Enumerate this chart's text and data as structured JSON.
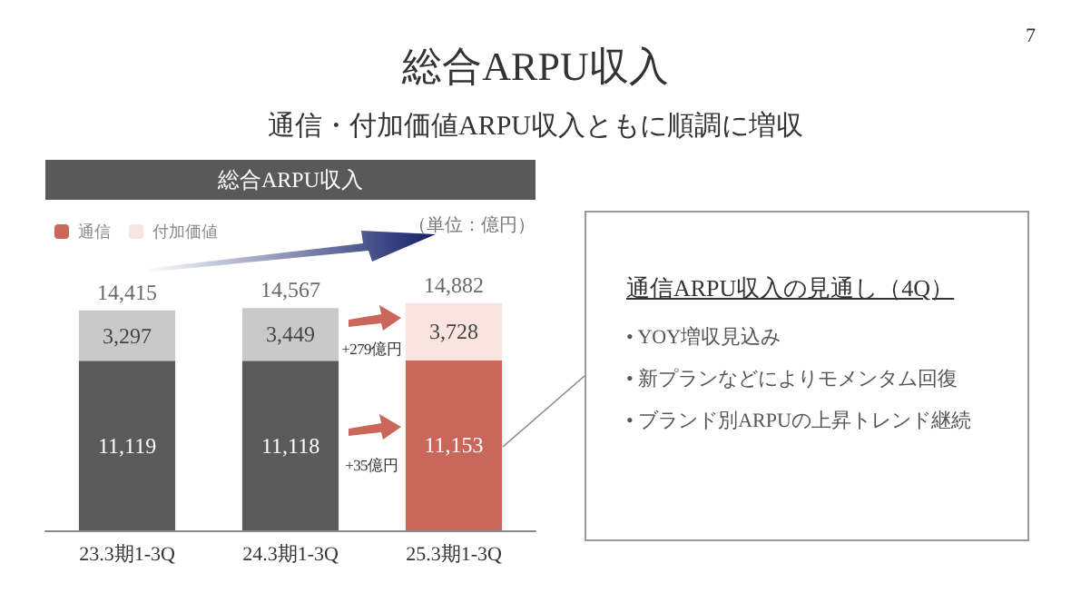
{
  "chart_data": {
    "type": "bar",
    "title": "総合ARPU収入",
    "subtitle": "通信・付加価値ARPU収入ともに順調に増収",
    "categories": [
      "23.3期1-3Q",
      "24.3期1-3Q",
      "25.3期1-3Q"
    ],
    "stacked": true,
    "series": [
      {
        "name": "通信",
        "color": "#c8675a",
        "colors": [
          "#5a5a5a",
          "#5a5a5a",
          "#c8675a"
        ],
        "values": [
          11119,
          11118,
          11153
        ],
        "value_labels": [
          "11,119",
          "11,118",
          "11,153"
        ]
      },
      {
        "name": "付加価値",
        "color": "#fbe3df",
        "colors": [
          "#c9c9c9",
          "#c9c9c9",
          "#fbe3df"
        ],
        "values": [
          3297,
          3449,
          3728
        ],
        "value_labels": [
          "3,297",
          "3,449",
          "3,728"
        ]
      }
    ],
    "totals": [
      "14,415",
      "14,567",
      "14,882"
    ],
    "legend": "top left",
    "annotations": [
      "総合ARPU収入",
      "（単位：億円）",
      "+279億円",
      "+35億円",
      "7",
      "通信ARPU収入の見通し（4Q）",
      "• YOY増収見込み",
      "• 新プランなどによりモメンタム回復",
      "• ブランド別ARPUの上昇トレンド継続"
    ]
  }
}
